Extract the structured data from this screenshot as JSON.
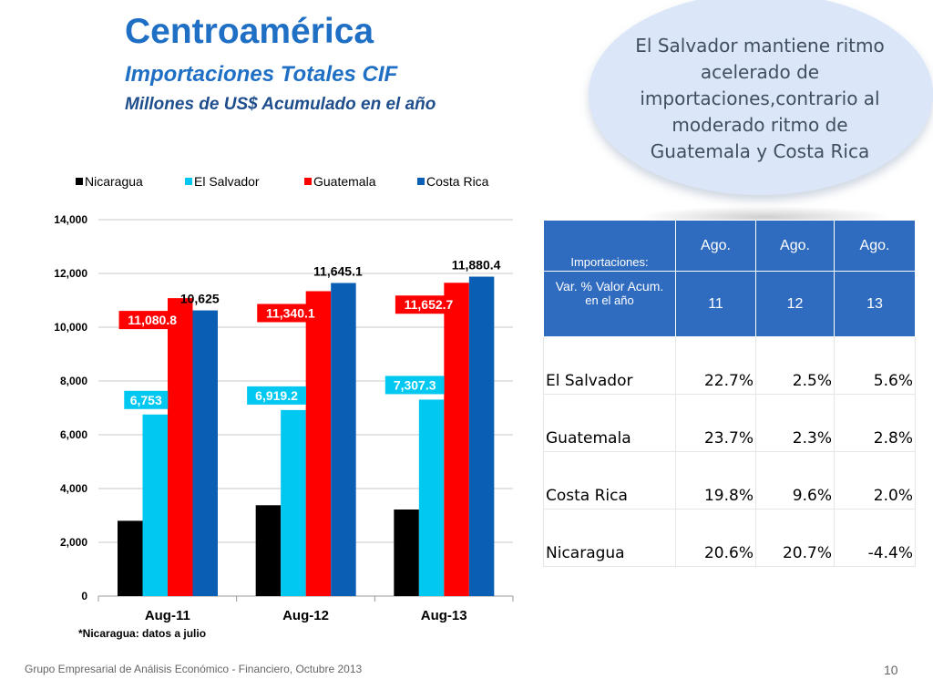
{
  "slide": {
    "title": "Centroamérica",
    "subtitle": "Importaciones Totales CIF",
    "subtitle2": "Millones de US$ Acumulado en el año",
    "callout": "El Salvador mantiene ritmo acelerado  de importaciones,contrario al moderado ritmo de Guatemala y Costa Rica",
    "footnote": "*Nicaragua: datos a julio",
    "footer": "Grupo Empresarial de Análisis Económico - Financiero, Octubre 2013",
    "page_number": "10"
  },
  "chart_data": {
    "type": "bar",
    "categories": [
      "Aug-11",
      "Aug-12",
      "Aug-13"
    ],
    "ylim": [
      0,
      14000
    ],
    "yticks": [
      "0",
      "2,000",
      "4,000",
      "6,000",
      "8,000",
      "10,000",
      "12,000",
      "14,000"
    ],
    "grid": true,
    "legend_position": "top",
    "series": [
      {
        "name": "Nicaragua",
        "color": "#000000",
        "values": [
          2800,
          3380,
          3220
        ],
        "labels": [
          "",
          "",
          ""
        ]
      },
      {
        "name": "El Salvador",
        "color": "#00c8f0",
        "values": [
          6753,
          6919.2,
          7307.3
        ],
        "labels": [
          "6,753",
          "6,919.2",
          "7,307.3"
        ]
      },
      {
        "name": "Guatemala",
        "color": "#ff0000",
        "values": [
          11080.8,
          11340.1,
          11652.7
        ],
        "labels": [
          "11,080.8",
          "11,340.1",
          "11,652.7"
        ]
      },
      {
        "name": "Costa Rica",
        "color": "#0a5fb4",
        "values": [
          10625,
          11645.1,
          11880.4
        ],
        "labels": [
          "10,625",
          "11,645.1",
          "11,880.4"
        ]
      }
    ]
  },
  "table": {
    "header_label_top": "Importaciones:",
    "header_label_bottom_1": "Var. % Valor Acum.",
    "header_label_bottom_2": "en el año",
    "years_top": [
      "Ago.",
      "Ago.",
      "Ago."
    ],
    "years_bottom": [
      "11",
      "12",
      "13"
    ],
    "rows": [
      {
        "country": "El Salvador",
        "values": [
          "22.7%",
          "2.5%",
          "5.6%"
        ]
      },
      {
        "country": "Guatemala",
        "values": [
          "23.7%",
          "2.3%",
          "2.8%"
        ]
      },
      {
        "country": "Costa Rica",
        "values": [
          "19.8%",
          "9.6%",
          "2.0%"
        ]
      },
      {
        "country": "Nicaragua",
        "values": [
          "20.6%",
          "20.7%",
          "-4.4%"
        ]
      }
    ]
  }
}
